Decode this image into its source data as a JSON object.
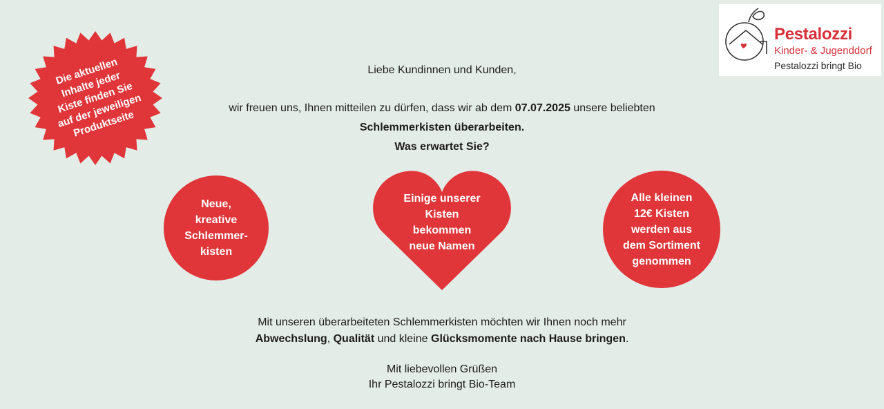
{
  "badge": {
    "lines": [
      "Die aktuellen",
      "Inhalte jeder",
      "Kiste finden Sie",
      "auf der jeweiligen",
      "Produktseite"
    ],
    "color": "#e03539"
  },
  "logo": {
    "brand": "Pestalozzi",
    "subtitle": "Kinder- & Jugenddorf",
    "tagline": "Pestalozzi bringt Bio",
    "icon": "house-apple-heart-icon",
    "color": "#d8303a"
  },
  "intro": {
    "greeting": "Liebe Kundinnen und Kunden,",
    "line1_pre": "wir freuen uns, Ihnen mitteilen zu dürfen, dass wir ab dem ",
    "line1_date": "07.07.2025",
    "line1_post": " unsere beliebten",
    "line2": "Schlemmerkisten überarbeiten.",
    "line3": "Was erwartet Sie?"
  },
  "features": [
    {
      "shape": "circle",
      "lines": [
        "Neue,",
        "kreative",
        "Schlemmer-",
        "kisten"
      ]
    },
    {
      "shape": "heart",
      "lines": [
        "Einige unserer",
        "Kisten",
        "bekommen",
        "neue Namen"
      ]
    },
    {
      "shape": "circle",
      "lines": [
        "Alle kleinen",
        "12€ Kisten",
        "werden aus",
        "dem Sortiment",
        "genommen"
      ]
    }
  ],
  "outro": {
    "line1": "Mit unseren überarbeiteten Schlemmerkisten möchten wir Ihnen noch mehr",
    "b1": "Abwechslung",
    "sep1": ", ",
    "b2": "Qualität",
    "mid": " und kleine ",
    "b3": "Glücksmomente nach Hause bringen",
    "end": ".",
    "closing1": "Mit liebevollen Grüßen",
    "closing2": "Ihr Pestalozzi bringt Bio-Team"
  },
  "colors": {
    "background": "#e3ece7",
    "accent": "#e03539"
  }
}
